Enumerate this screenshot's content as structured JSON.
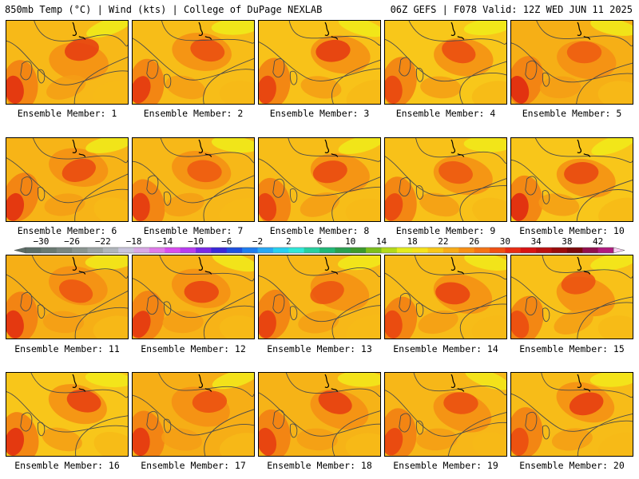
{
  "header": {
    "left": "850mb Temp (°C) | Wind (kts) | College of DuPage NEXLAB",
    "right": "06Z GEFS | F078 Valid: 12Z WED JUN 11 2025"
  },
  "colorbar": {
    "ticks": [
      "−30",
      "−26",
      "−22",
      "−18",
      "−14",
      "−10",
      "−6",
      "−2",
      "2",
      "6",
      "10",
      "14",
      "18",
      "22",
      "26",
      "30",
      "34",
      "38",
      "42"
    ],
    "colors": [
      "#5c6e68",
      "#6a7a72",
      "#7a8681",
      "#8a9590",
      "#9ba3a3",
      "#b0b6bc",
      "#c9c5dd",
      "#d9a8e6",
      "#e07bea",
      "#d94df0",
      "#b83cf0",
      "#7a28e6",
      "#3a28d8",
      "#1e50e0",
      "#1f7ef0",
      "#28a8f4",
      "#28d0f0",
      "#30e8d8",
      "#28d0a0",
      "#20b878",
      "#2aa050",
      "#3c9a2c",
      "#7cbf1c",
      "#b4da1a",
      "#e4ec1e",
      "#f6e21c",
      "#f8c81a",
      "#f8ac18",
      "#f89016",
      "#f47416",
      "#f05014",
      "#e82c14",
      "#d81414",
      "#bb1010",
      "#9a0c0c",
      "#7c080a",
      "#92104e",
      "#b01a7e",
      "#cc2aa2",
      "#e240c2",
      "#f060da",
      "#f8a0ec",
      "#fad0f6"
    ],
    "levels": [
      -32,
      -30,
      -28,
      -26,
      -24,
      -22,
      -20,
      -18,
      -16,
      -14,
      -12,
      -10,
      -8,
      -6,
      -4,
      -2,
      0,
      2,
      4,
      6,
      8,
      10,
      12,
      14,
      16,
      18,
      20,
      22,
      24,
      26,
      28,
      30,
      32,
      34,
      36,
      38,
      40,
      42,
      44
    ]
  },
  "members": [
    {
      "label": "Ensemble Member: 1",
      "number": 1
    },
    {
      "label": "Ensemble Member: 2",
      "number": 2
    },
    {
      "label": "Ensemble Member: 3",
      "number": 3
    },
    {
      "label": "Ensemble Member: 4",
      "number": 4
    },
    {
      "label": "Ensemble Member: 5",
      "number": 5
    },
    {
      "label": "Ensemble Member: 6",
      "number": 6
    },
    {
      "label": "Ensemble Member: 7",
      "number": 7
    },
    {
      "label": "Ensemble Member: 8",
      "number": 8
    },
    {
      "label": "Ensemble Member: 9",
      "number": 9
    },
    {
      "label": "Ensemble Member: 10",
      "number": 10
    },
    {
      "label": "Ensemble Member: 11",
      "number": 11
    },
    {
      "label": "Ensemble Member: 12",
      "number": 12
    },
    {
      "label": "Ensemble Member: 13",
      "number": 13
    },
    {
      "label": "Ensemble Member: 14",
      "number": 14
    },
    {
      "label": "Ensemble Member: 15",
      "number": 15
    },
    {
      "label": "Ensemble Member: 16",
      "number": 16
    },
    {
      "label": "Ensemble Member: 17",
      "number": 17
    },
    {
      "label": "Ensemble Member: 18",
      "number": 18
    },
    {
      "label": "Ensemble Member: 19",
      "number": 19
    },
    {
      "label": "Ensemble Member: 20",
      "number": 20
    }
  ]
}
